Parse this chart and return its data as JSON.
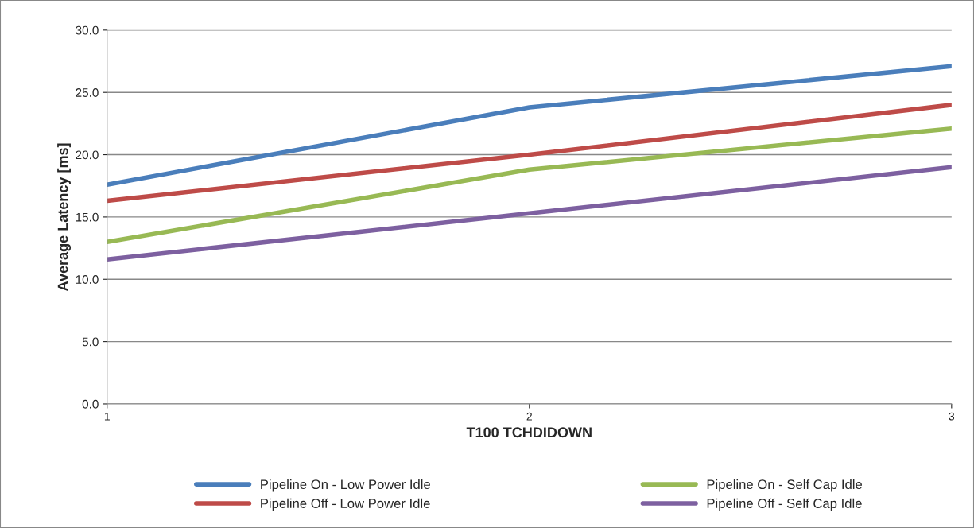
{
  "chart_data": {
    "type": "line",
    "xlabel": "T100 TCHDIDOWN",
    "ylabel": "Average Latency [ms]",
    "x": [
      1,
      2,
      3
    ],
    "xlim": [
      1,
      3
    ],
    "xticks": [
      1,
      2,
      3
    ],
    "ylim": [
      0,
      30
    ],
    "yticks": [
      {
        "value": 0,
        "label": "0.0"
      },
      {
        "value": 5,
        "label": "5.0"
      },
      {
        "value": 10,
        "label": "10.0"
      },
      {
        "value": 15,
        "label": "15.0"
      },
      {
        "value": 20,
        "label": "20.0"
      },
      {
        "value": 25,
        "label": "25.0"
      },
      {
        "value": 30,
        "label": "30.0"
      }
    ],
    "grid": "y",
    "legend": "bottom",
    "marker": "none",
    "line_style": "solid",
    "series": [
      {
        "name": "Pipeline On - Low Power Idle",
        "color": "#4a7ebb",
        "values": [
          17.6,
          23.8,
          27.1
        ]
      },
      {
        "name": "Pipeline Off - Low Power Idle",
        "color": "#be4b48",
        "values": [
          16.3,
          20.0,
          24.0
        ]
      },
      {
        "name": "Pipeline On - Self Cap Idle",
        "color": "#98b954",
        "values": [
          13.0,
          18.8,
          22.1
        ]
      },
      {
        "name": "Pipeline Off - Self Cap Idle",
        "color": "#7d60a0",
        "values": [
          11.6,
          15.3,
          19.0
        ]
      }
    ]
  }
}
